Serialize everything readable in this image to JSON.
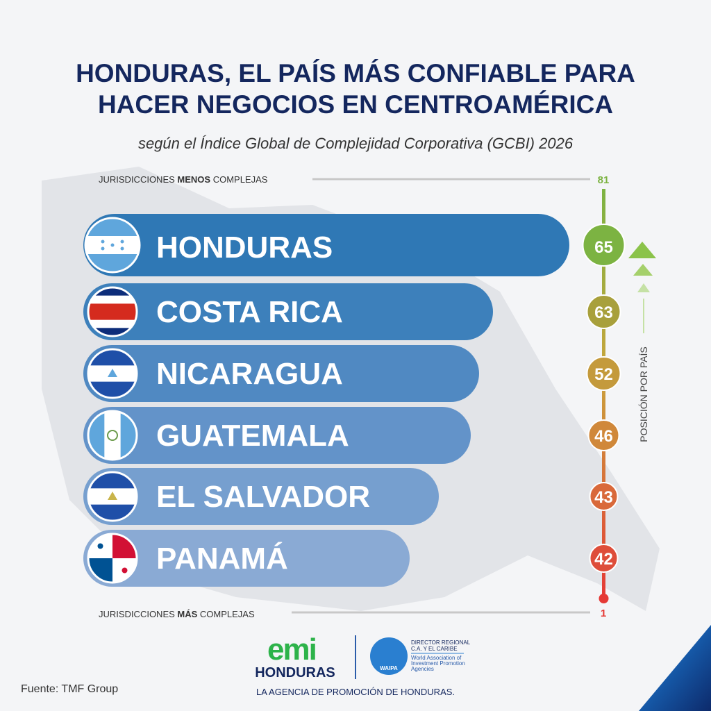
{
  "header": {
    "title_line1": "HONDURAS, EL PAÍS MÁS CONFIABLE PARA",
    "title_line2": "HACER NEGOCIOS EN CENTROAMÉRICA",
    "subtitle": "según el Índice Global de Complejidad Corporativa (GCBI) 2026"
  },
  "scale": {
    "top_label": [
      "JURISDICCIONES ",
      "MENOS",
      " COMPLEJAS"
    ],
    "top_value": "81",
    "bottom_label": [
      "JURISDICCIONES ",
      "MÁS",
      " COMPLEJAS"
    ],
    "bottom_value": "1",
    "axis_label": "POSICIÓN POR PAÍS"
  },
  "countries": [
    {
      "name": "HONDURAS",
      "position": "65"
    },
    {
      "name": "COSTA RICA",
      "position": "63"
    },
    {
      "name": "NICARAGUA",
      "position": "52"
    },
    {
      "name": "GUATEMALA",
      "position": "46"
    },
    {
      "name": "EL SALVADOR",
      "position": "43"
    },
    {
      "name": "PANAMÁ",
      "position": "42"
    }
  ],
  "footer": {
    "source": "Fuente: TMF Group",
    "logo_name": "HONDURAS",
    "waipa_title": [
      "DIRECTOR REGIONAL",
      "C.A. Y EL CARIBE"
    ],
    "waipa_name": "WAIPA",
    "waipa_desc": [
      "World Association of",
      "Investment Promotion",
      "Agencies"
    ],
    "tagline": "LA AGENCIA DE PROMOCIÓN DE HONDURAS."
  }
}
